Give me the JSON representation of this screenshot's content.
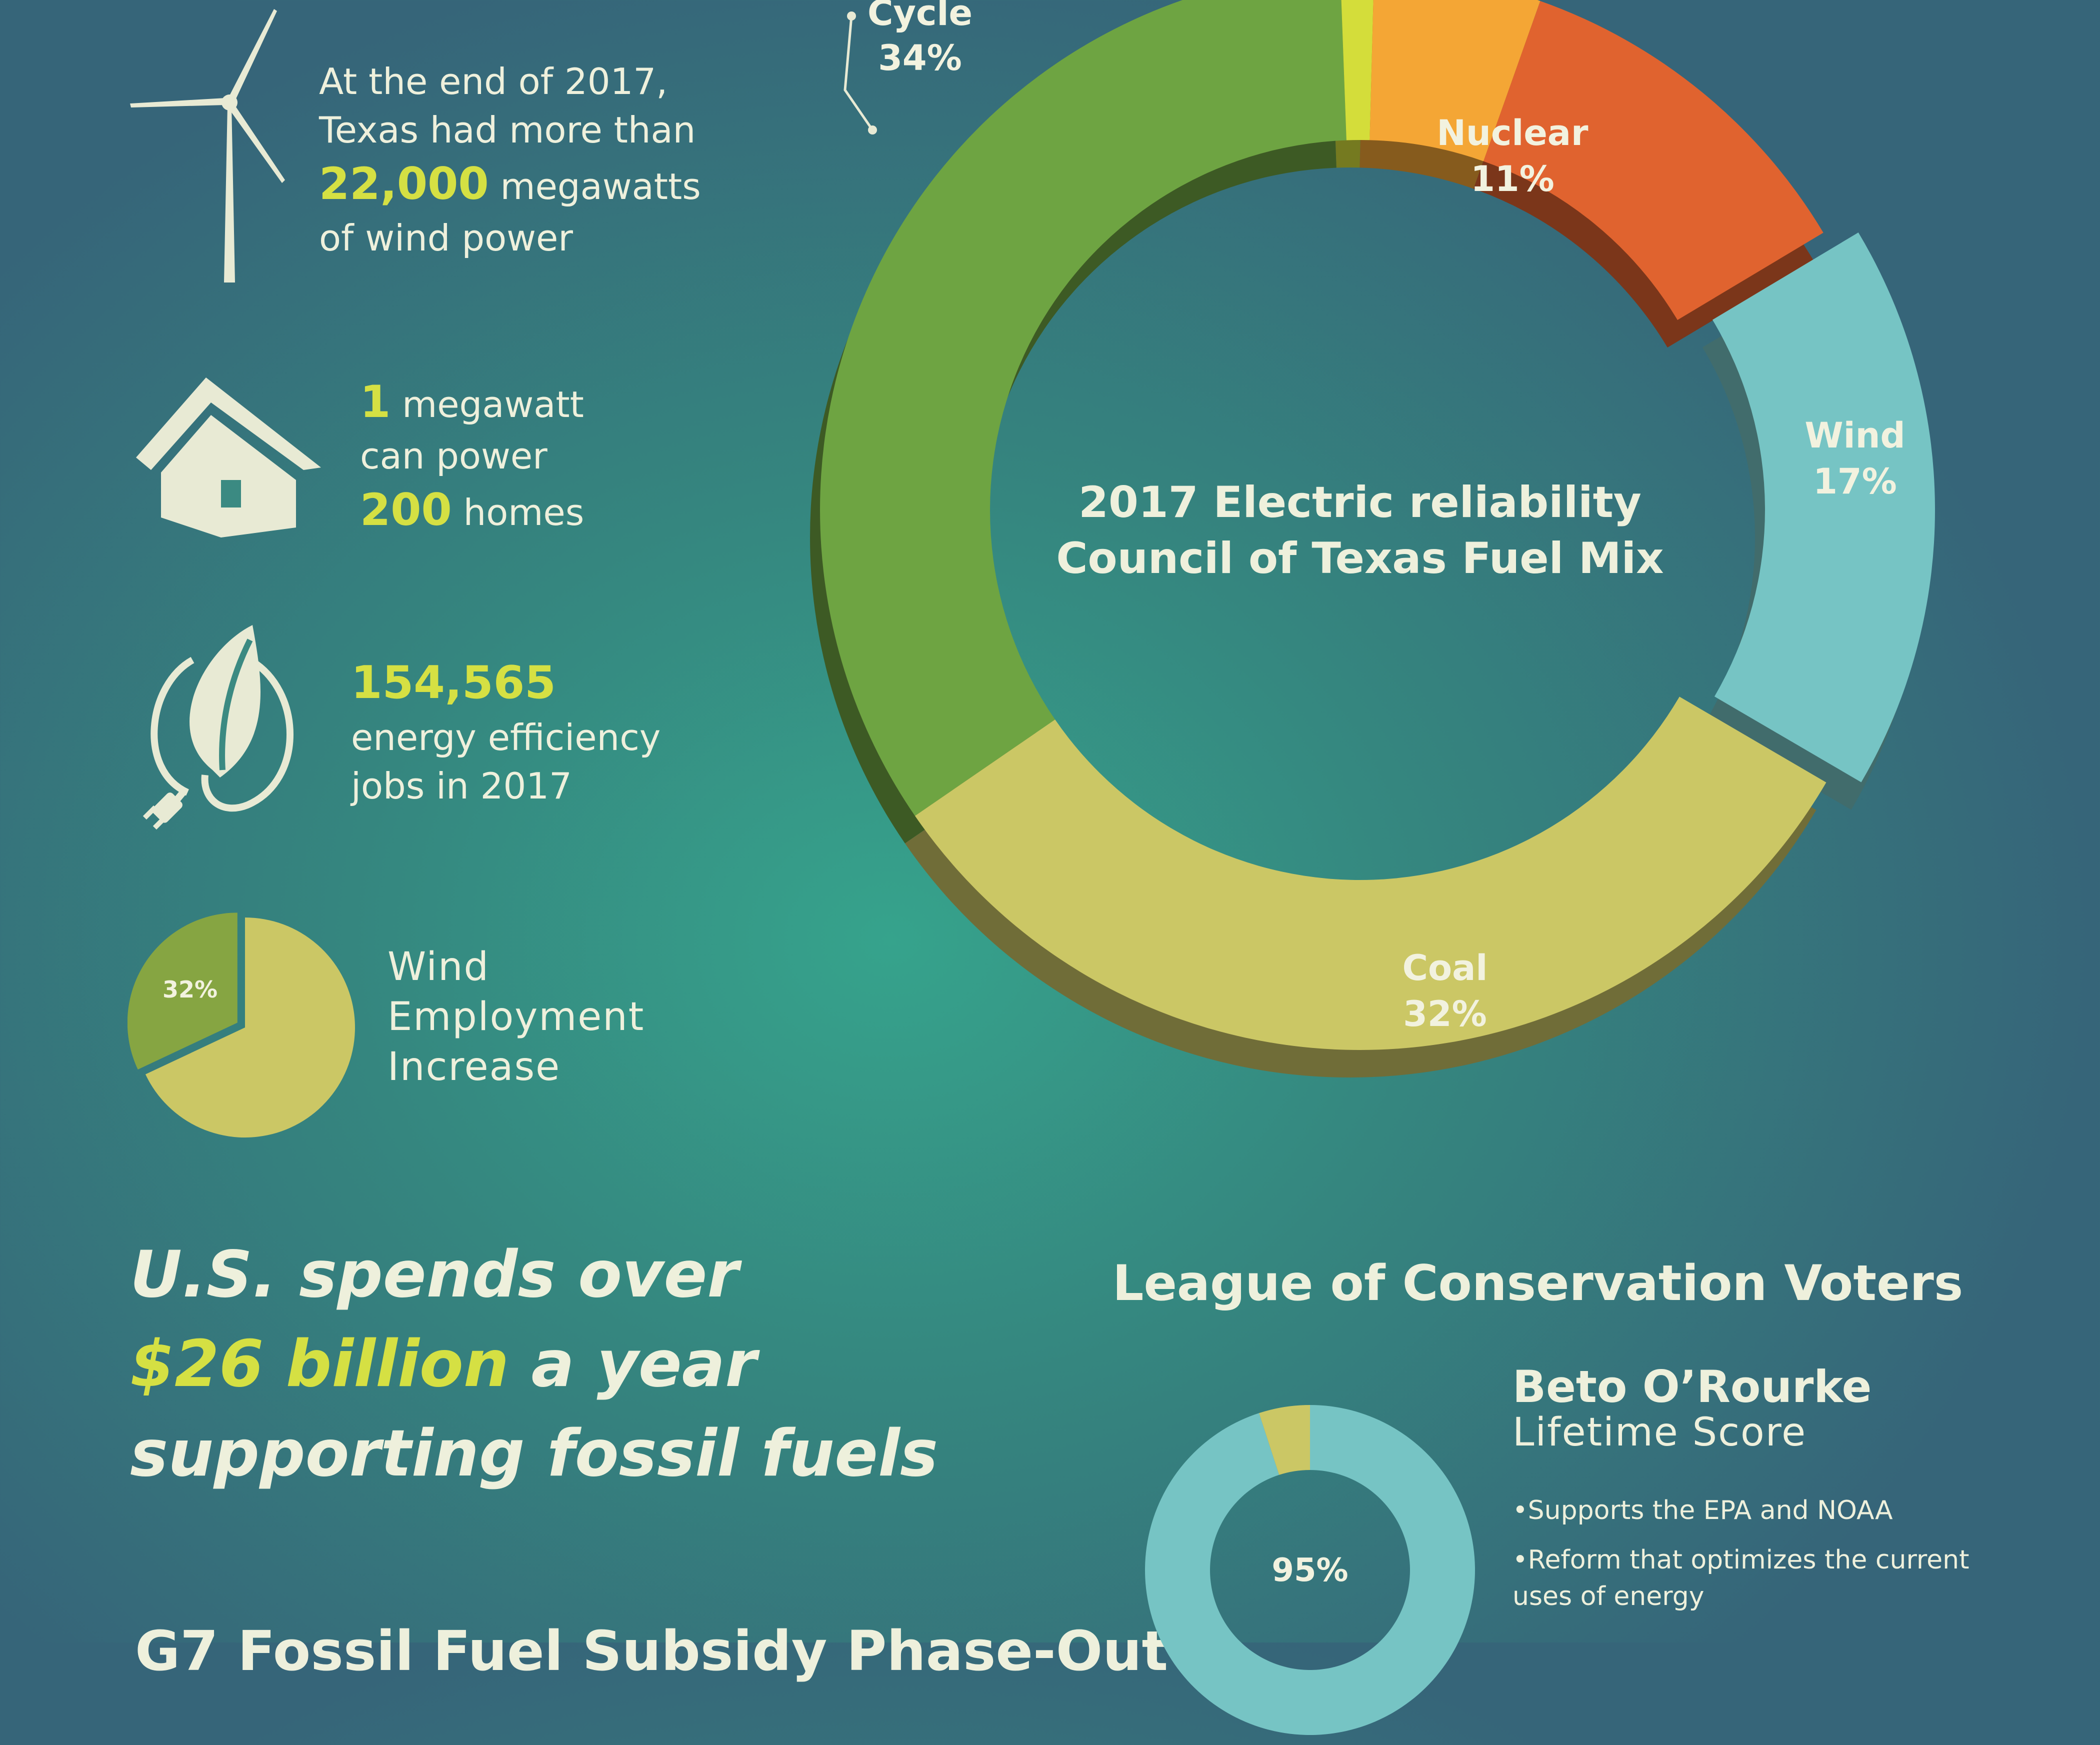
{
  "colors": {
    "highlight": "#d5e043",
    "text": "#eef0dc",
    "icon": "#e8ead4",
    "natural_gas": "#6ea442",
    "other": "#d4dd3a",
    "solar_orange": "#f4a635",
    "nuclear": "#e0632f",
    "wind": "#76c4c4",
    "coal": "#cbc765"
  },
  "icons": [
    "wind-turbine-icon",
    "house-icon",
    "leaf-plug-icon"
  ],
  "facts": {
    "wind": {
      "line1": "At the end of 2017,",
      "line2": "Texas had more than",
      "number": "22,000",
      "line3_rest": " megawatts",
      "line4": "of wind power"
    },
    "homes": {
      "number1": "1",
      "line1_rest": " megawatt",
      "line2": "can power",
      "number2": "200",
      "line3_rest": " homes"
    },
    "jobs": {
      "number": "154,565",
      "line2": "energy efficiency",
      "line3": "jobs in 2017"
    },
    "wind_employment": {
      "percent_label": "32%",
      "line1": "Wind",
      "line2": "Employment",
      "line3": "Increase"
    }
  },
  "subsidy": {
    "line1": "U.S. spends over",
    "amount": "$26 billion",
    "line2_rest": " a year",
    "line3": "supporting fossil fuels",
    "next_heading_partial": "G7 Fossil Fuel Subsidy Phase-Out"
  },
  "lcv": {
    "title": "League of Conservation Voters",
    "candidate": "Beto O’Rourke",
    "subtitle": "Lifetime Score",
    "score_label": "95%",
    "bullets": [
      "•Supports the EPA and  NOAA",
      "•Reform that optimizes the current",
      "uses of energy"
    ]
  },
  "chart_data": [
    {
      "type": "pie",
      "title": "2017 Electric reliability Council of Texas Fuel Mix",
      "slices": [
        {
          "label": "Combined Cycle",
          "display": "34%",
          "value": 34,
          "label_visible": "Cycle"
        },
        {
          "label": "",
          "value": 1
        },
        {
          "label": "",
          "value": 5
        },
        {
          "label": "Nuclear",
          "display": "11%",
          "value": 11
        },
        {
          "label": "Wind",
          "display": "17%",
          "value": 17
        },
        {
          "label": "Coal",
          "display": "32%",
          "value": 32
        }
      ]
    },
    {
      "type": "pie",
      "title": "Wind Employment Increase",
      "slices": [
        {
          "label": "Wind",
          "display": "32%",
          "value": 32
        },
        {
          "label": "",
          "value": 68
        }
      ]
    },
    {
      "type": "pie",
      "title": "Beto O’Rourke Lifetime Score",
      "slices": [
        {
          "label": "Score",
          "display": "95%",
          "value": 95
        },
        {
          "label": "",
          "value": 5
        }
      ]
    }
  ]
}
